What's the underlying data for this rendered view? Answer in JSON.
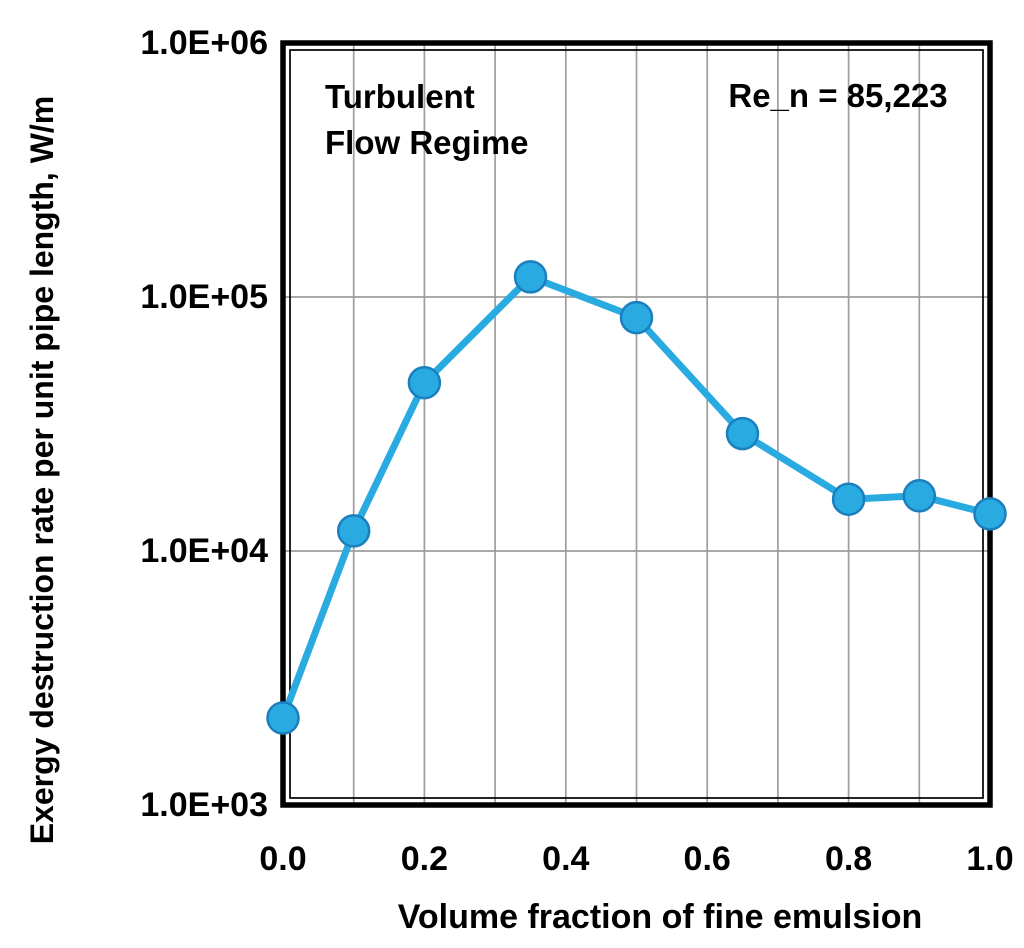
{
  "figure": {
    "background": "#ffffff"
  },
  "annotations": {
    "regime_line1": "Turbulent",
    "regime_line2": "Flow Regime",
    "reynolds": "Re_n = 85,223"
  },
  "chart_data": {
    "type": "line",
    "title": "",
    "xlabel": "Volume fraction of fine emulsion",
    "ylabel": "Exergy destruction rate per unit pipe length, W/m",
    "series": [
      {
        "name": "Exergy destruction rate",
        "x": [
          0.0,
          0.1,
          0.2,
          0.35,
          0.5,
          0.65,
          0.8,
          0.9,
          1.0
        ],
        "y": [
          2200,
          12000,
          46000,
          120000,
          83000,
          29000,
          16000,
          16500,
          14000
        ]
      }
    ],
    "x_ticks": [
      "0.0",
      "0.2",
      "0.4",
      "0.6",
      "0.8",
      "1.0"
    ],
    "x_tick_values": [
      0.0,
      0.2,
      0.4,
      0.6,
      0.8,
      1.0
    ],
    "y_ticks": [
      "1.0E+03",
      "1.0E+04",
      "1.0E+05",
      "1.0E+06"
    ],
    "y_tick_values": [
      1000,
      10000,
      100000,
      1000000
    ],
    "xlim": [
      0.0,
      1.0
    ],
    "ylim": [
      1000,
      1000000
    ],
    "y_scale": "log",
    "x_grid_step": 0.1,
    "grid": true,
    "legend_position": "none",
    "annotations_text": [
      "Turbulent Flow Regime",
      "Re_n = 85,223"
    ],
    "colors": {
      "line": "#29ABE1",
      "marker_fill": "#29ABE1",
      "marker_stroke": "#1B7FBE",
      "grid": "#9E9E9E",
      "frame": "#000000",
      "text": "#000000"
    }
  }
}
